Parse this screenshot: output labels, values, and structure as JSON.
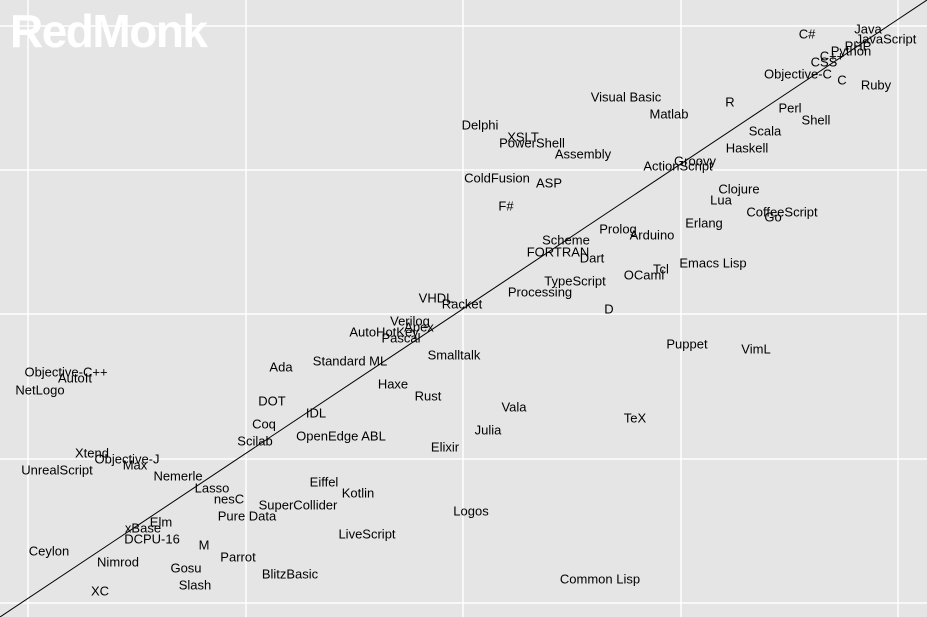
{
  "watermark": "RedMonk",
  "colors": {
    "background": "#e5e5e5",
    "grid": "#ffffff",
    "trend_line": "#000000",
    "label": "#000000",
    "watermark": "#ffffff"
  },
  "chart_data": {
    "type": "scatter",
    "title": "",
    "xlabel": "",
    "ylabel": "",
    "xlim": [
      0,
      92.7
    ],
    "ylim": [
      0,
      61.7
    ],
    "grid": true,
    "x_gridlines": [
      2.8,
      24.6,
      46.3,
      68.1,
      89.8
    ],
    "y_gridlines": [
      1.4,
      15.8,
      30.3,
      44.7,
      59.1
    ],
    "trend_line": [
      [
        0,
        0
      ],
      [
        92.7,
        61.7
      ]
    ],
    "points": [
      {
        "label": "Java",
        "x": 86.8,
        "y": 58.8
      },
      {
        "label": "JavaScript",
        "x": 88.6,
        "y": 57.8
      },
      {
        "label": "C#",
        "x": 80.7,
        "y": 58.3
      },
      {
        "label": "PHP",
        "x": 85.8,
        "y": 57.1
      },
      {
        "label": "Python",
        "x": 85.1,
        "y": 56.6
      },
      {
        "label": "C++",
        "x": 83.2,
        "y": 56.1
      },
      {
        "label": "CSS",
        "x": 82.4,
        "y": 55.5
      },
      {
        "label": "Objective-C",
        "x": 79.8,
        "y": 54.3
      },
      {
        "label": "C",
        "x": 84.2,
        "y": 53.7
      },
      {
        "label": "Ruby",
        "x": 87.6,
        "y": 53.2
      },
      {
        "label": "Visual Basic",
        "x": 62.6,
        "y": 52.0
      },
      {
        "label": "R",
        "x": 73.0,
        "y": 51.5
      },
      {
        "label": "Perl",
        "x": 79.0,
        "y": 50.9
      },
      {
        "label": "Matlab",
        "x": 66.9,
        "y": 50.3
      },
      {
        "label": "Shell",
        "x": 81.6,
        "y": 49.7
      },
      {
        "label": "Delphi",
        "x": 48.0,
        "y": 49.2
      },
      {
        "label": "Scala",
        "x": 76.5,
        "y": 48.6
      },
      {
        "label": "XSLT",
        "x": 52.3,
        "y": 48.0
      },
      {
        "label": "PowerShell",
        "x": 53.2,
        "y": 47.4
      },
      {
        "label": "Haskell",
        "x": 74.7,
        "y": 46.9
      },
      {
        "label": "Assembly",
        "x": 58.3,
        "y": 46.3
      },
      {
        "label": "Groovy",
        "x": 69.5,
        "y": 45.6
      },
      {
        "label": "ActionScript",
        "x": 67.8,
        "y": 45.1
      },
      {
        "label": "ColdFusion",
        "x": 49.7,
        "y": 43.9
      },
      {
        "label": "ASP",
        "x": 54.9,
        "y": 43.4
      },
      {
        "label": "Clojure",
        "x": 73.9,
        "y": 42.8
      },
      {
        "label": "Lua",
        "x": 72.1,
        "y": 41.7
      },
      {
        "label": "F#",
        "x": 50.6,
        "y": 41.1
      },
      {
        "label": "CoffeeScript",
        "x": 78.2,
        "y": 40.5
      },
      {
        "label": "Go",
        "x": 77.3,
        "y": 40.0
      },
      {
        "label": "Erlang",
        "x": 70.4,
        "y": 39.4
      },
      {
        "label": "Prolog",
        "x": 61.8,
        "y": 38.8
      },
      {
        "label": "Arduino",
        "x": 65.2,
        "y": 38.2
      },
      {
        "label": "Scheme",
        "x": 56.6,
        "y": 37.7
      },
      {
        "label": "FORTRAN",
        "x": 55.8,
        "y": 36.5
      },
      {
        "label": "Dart",
        "x": 59.2,
        "y": 35.9
      },
      {
        "label": "Emacs Lisp",
        "x": 71.3,
        "y": 35.4
      },
      {
        "label": "Tcl",
        "x": 66.1,
        "y": 34.8
      },
      {
        "label": "OCaml",
        "x": 64.4,
        "y": 34.2
      },
      {
        "label": "TypeScript",
        "x": 57.5,
        "y": 33.6
      },
      {
        "label": "Processing",
        "x": 54.0,
        "y": 32.5
      },
      {
        "label": "VHDL",
        "x": 43.6,
        "y": 31.9
      },
      {
        "label": "Racket",
        "x": 46.2,
        "y": 31.3
      },
      {
        "label": "D",
        "x": 60.9,
        "y": 30.8
      },
      {
        "label": "Verilog",
        "x": 41.0,
        "y": 29.6
      },
      {
        "label": "Apex",
        "x": 41.9,
        "y": 29.0
      },
      {
        "label": "AutoHotKey",
        "x": 38.4,
        "y": 28.5
      },
      {
        "label": "Pascal",
        "x": 40.1,
        "y": 27.9
      },
      {
        "label": "Puppet",
        "x": 68.7,
        "y": 27.3
      },
      {
        "label": "VimL",
        "x": 75.6,
        "y": 26.8
      },
      {
        "label": "Smalltalk",
        "x": 45.4,
        "y": 26.2
      },
      {
        "label": "Standard ML",
        "x": 35.0,
        "y": 25.6
      },
      {
        "label": "Ada",
        "x": 28.1,
        "y": 25.0
      },
      {
        "label": "Objective-C++",
        "x": 6.6,
        "y": 24.5
      },
      {
        "label": "AutoIt",
        "x": 7.5,
        "y": 23.9
      },
      {
        "label": "Haxe",
        "x": 39.3,
        "y": 23.3
      },
      {
        "label": "NetLogo",
        "x": 4.0,
        "y": 22.7
      },
      {
        "label": "Rust",
        "x": 42.8,
        "y": 22.1
      },
      {
        "label": "DOT",
        "x": 27.2,
        "y": 21.6
      },
      {
        "label": "Vala",
        "x": 51.4,
        "y": 21.0
      },
      {
        "label": "IDL",
        "x": 31.6,
        "y": 20.4
      },
      {
        "label": "TeX",
        "x": 63.5,
        "y": 19.9
      },
      {
        "label": "Coq",
        "x": 26.4,
        "y": 19.3
      },
      {
        "label": "Julia",
        "x": 48.8,
        "y": 18.7
      },
      {
        "label": "OpenEdge ABL",
        "x": 34.1,
        "y": 18.1
      },
      {
        "label": "Scilab",
        "x": 25.5,
        "y": 17.6
      },
      {
        "label": "Elixir",
        "x": 44.5,
        "y": 17.0
      },
      {
        "label": "Xtend",
        "x": 9.2,
        "y": 16.4
      },
      {
        "label": "Objective-J",
        "x": 12.7,
        "y": 15.8
      },
      {
        "label": "Max",
        "x": 13.5,
        "y": 15.2
      },
      {
        "label": "UnrealScript",
        "x": 5.7,
        "y": 14.7
      },
      {
        "label": "Nemerle",
        "x": 17.8,
        "y": 14.1
      },
      {
        "label": "Eiffel",
        "x": 32.4,
        "y": 13.5
      },
      {
        "label": "Lasso",
        "x": 21.2,
        "y": 12.9
      },
      {
        "label": "Kotlin",
        "x": 35.8,
        "y": 12.4
      },
      {
        "label": "nesC",
        "x": 22.9,
        "y": 11.8
      },
      {
        "label": "SuperCollider",
        "x": 29.8,
        "y": 11.2
      },
      {
        "label": "Logos",
        "x": 47.1,
        "y": 10.6
      },
      {
        "label": "Pure Data",
        "x": 24.7,
        "y": 10.1
      },
      {
        "label": "Elm",
        "x": 16.1,
        "y": 9.5
      },
      {
        "label": "xBase",
        "x": 14.3,
        "y": 8.9
      },
      {
        "label": "LiveScript",
        "x": 36.7,
        "y": 8.3
      },
      {
        "label": "DCPU-16",
        "x": 15.2,
        "y": 7.8
      },
      {
        "label": "M",
        "x": 20.4,
        "y": 7.2
      },
      {
        "label": "Ceylon",
        "x": 4.9,
        "y": 6.6
      },
      {
        "label": "Parrot",
        "x": 23.8,
        "y": 6.0
      },
      {
        "label": "Nimrod",
        "x": 11.8,
        "y": 5.5
      },
      {
        "label": "Gosu",
        "x": 18.6,
        "y": 4.9
      },
      {
        "label": "BlitzBasic",
        "x": 29.0,
        "y": 4.3
      },
      {
        "label": "Common Lisp",
        "x": 60.0,
        "y": 3.8
      },
      {
        "label": "Slash",
        "x": 19.5,
        "y": 3.2
      },
      {
        "label": "XC",
        "x": 10.0,
        "y": 2.6
      }
    ]
  }
}
